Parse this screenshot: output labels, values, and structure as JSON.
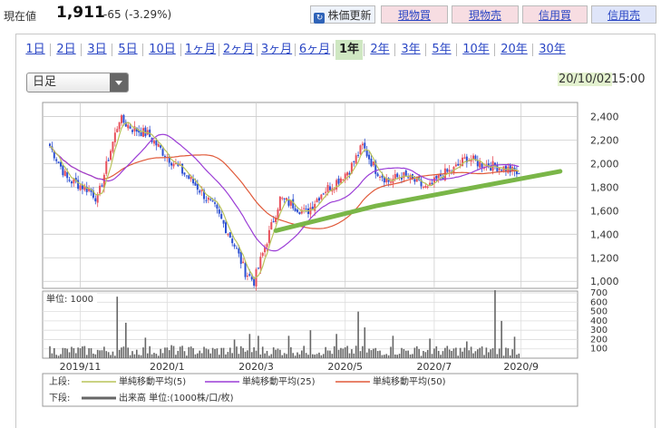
{
  "header": {
    "price_label": "現在値",
    "price_value": "1,911",
    "price_change": "-65 (-3.29%)",
    "refresh_label": "株価更新",
    "buttons": [
      "現物買",
      "現物売",
      "信用買",
      "信用売"
    ]
  },
  "periods": [
    "1日",
    "2日",
    "3日",
    "5日",
    "10日",
    "1ヶ月",
    "2ヶ月",
    "3ヶ月",
    "6ヶ月",
    "1年",
    "2年",
    "3年",
    "5年",
    "10年",
    "20年",
    "30年"
  ],
  "active_period": "1年",
  "chart_select": "日足",
  "datetime": {
    "date": "20/10/02",
    "time": "15:00"
  },
  "colors": {
    "up": "#e8505b",
    "down": "#2c4fd2",
    "ma5": "#b9c35a",
    "ma25": "#9b3dd6",
    "ma50": "#e05a3a",
    "trend": "#7ab648",
    "volume": "#666666"
  },
  "legend": {
    "upper_label": "上段:",
    "lower_label": "下段:",
    "ma5": "単純移動平均(5)",
    "ma25": "単純移動平均(25)",
    "ma50": "単純移動平均(50)",
    "volume": "出来高 単位:(1000株/口/枚)"
  },
  "chart_data": {
    "type": "candlestick",
    "x_ticks": [
      "2019/11",
      "2020/1",
      "2020/3",
      "2020/5",
      "2020/7",
      "2020/9"
    ],
    "y_ticks": [
      "2,400",
      "2,200",
      "2,000",
      "1,800",
      "1,600",
      "1,400",
      "1,200",
      "1,000"
    ],
    "ylim": [
      940,
      2520
    ],
    "volume_label": "単位: 1000",
    "volume_ticks": [
      "700",
      "600",
      "500",
      "400",
      "300",
      "200",
      "100"
    ],
    "volume_ylim": [
      0,
      720
    ],
    "price_keypoints": [
      [
        0,
        2150
      ],
      [
        8,
        1870
      ],
      [
        18,
        1780
      ],
      [
        22,
        1700
      ],
      [
        27,
        2050
      ],
      [
        32,
        2380
      ],
      [
        38,
        2300
      ],
      [
        45,
        2250
      ],
      [
        52,
        2100
      ],
      [
        60,
        1950
      ],
      [
        68,
        1800
      ],
      [
        76,
        1620
      ],
      [
        84,
        1350
      ],
      [
        90,
        1080
      ],
      [
        94,
        1000
      ],
      [
        100,
        1350
      ],
      [
        106,
        1700
      ],
      [
        112,
        1650
      ],
      [
        118,
        1580
      ],
      [
        125,
        1750
      ],
      [
        132,
        1850
      ],
      [
        138,
        1950
      ],
      [
        144,
        2150
      ],
      [
        150,
        1950
      ],
      [
        156,
        1850
      ],
      [
        162,
        1900
      ],
      [
        168,
        1850
      ],
      [
        174,
        1780
      ],
      [
        180,
        1900
      ],
      [
        186,
        1950
      ],
      [
        192,
        2050
      ],
      [
        198,
        2000
      ],
      [
        204,
        1980
      ],
      [
        210,
        1960
      ],
      [
        216,
        1911
      ]
    ],
    "volume_spikes": [
      [
        31,
        660
      ],
      [
        35,
        380
      ],
      [
        44,
        220
      ],
      [
        56,
        140
      ],
      [
        85,
        200
      ],
      [
        92,
        260
      ],
      [
        96,
        240
      ],
      [
        110,
        240
      ],
      [
        120,
        300
      ],
      [
        132,
        260
      ],
      [
        142,
        500
      ],
      [
        145,
        330
      ],
      [
        158,
        240
      ],
      [
        175,
        210
      ],
      [
        192,
        180
      ],
      [
        205,
        730
      ],
      [
        208,
        400
      ],
      [
        214,
        230
      ]
    ],
    "trendline": [
      [
        104,
        1430
      ],
      [
        150,
        1640
      ],
      [
        235,
        1935
      ]
    ]
  }
}
